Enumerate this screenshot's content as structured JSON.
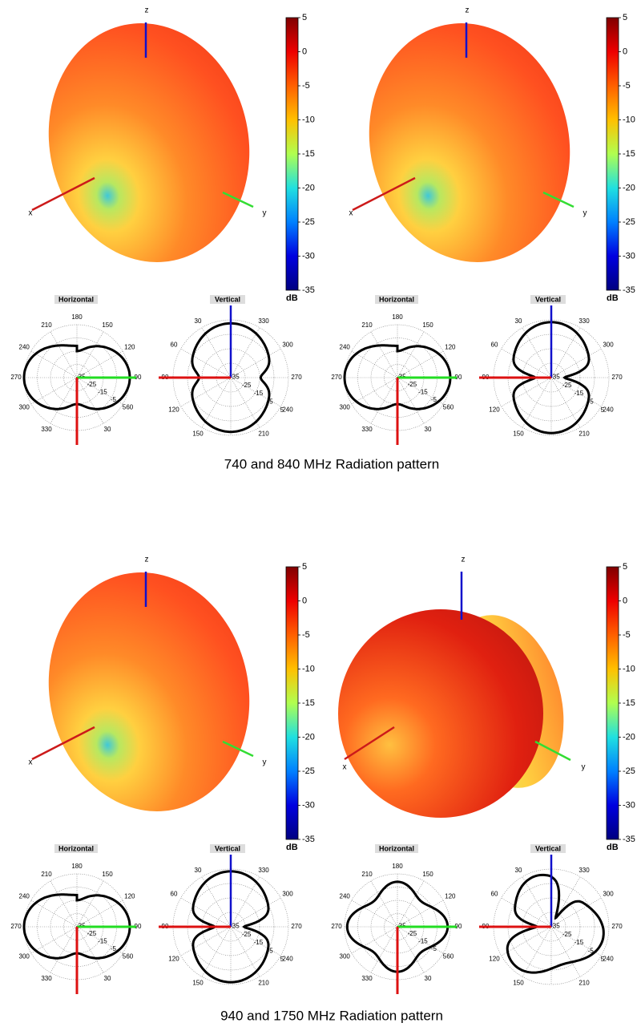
{
  "figure": {
    "axis_labels": {
      "x": "x",
      "y": "y",
      "z": "z"
    },
    "colorbar": {
      "ticks": [
        5,
        0,
        -5,
        -10,
        -15,
        -20,
        -25,
        -30,
        -35
      ],
      "unit": "dB"
    },
    "polar": {
      "horizontal_title": "Horizontal",
      "vertical_title": "Vertical",
      "horizontal_angles": [
        180,
        150,
        120,
        90,
        60,
        30,
        330,
        300,
        270,
        240,
        210
      ],
      "vertical_angles": [
        30,
        330,
        60,
        300,
        90,
        270,
        120,
        240,
        150,
        210
      ],
      "radial_labels": [
        -35,
        -25,
        -15,
        -5,
        5
      ]
    },
    "captions": [
      "740 and 840 MHz Radiation pattern",
      "940 and 1750 MHz Radiation pattern"
    ]
  }
}
